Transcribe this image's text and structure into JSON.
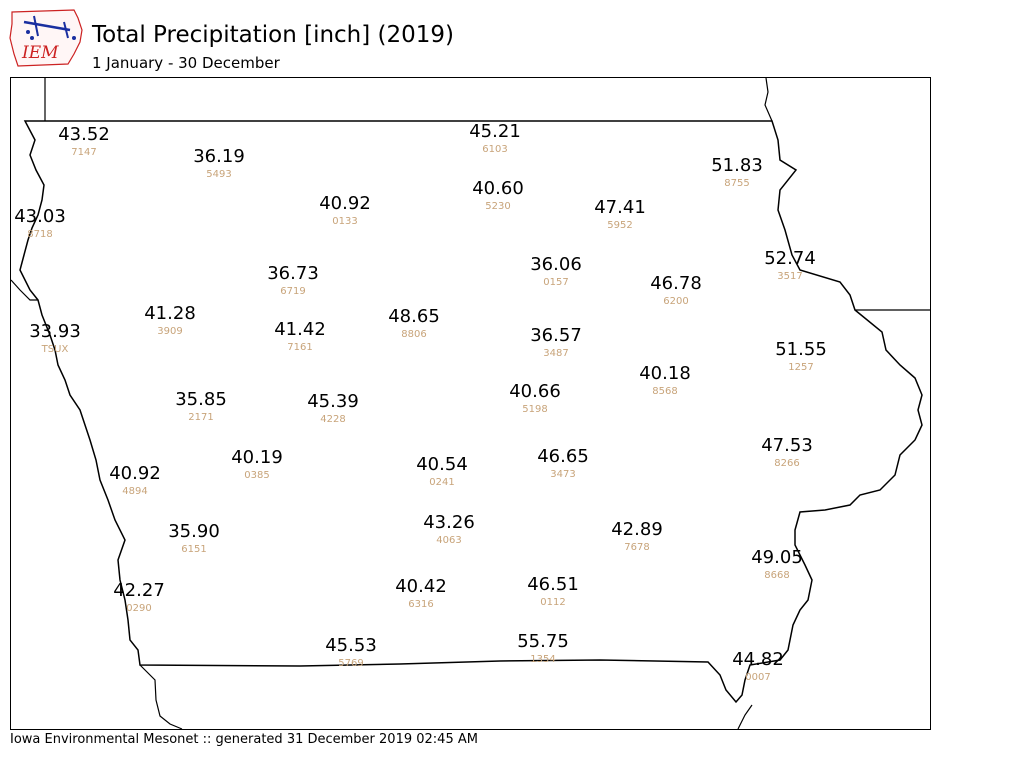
{
  "header": {
    "logo_text": "IEM",
    "title": "Total Precipitation [inch] (2019)",
    "subtitle": "1 January - 30 December"
  },
  "footer": {
    "text": "Iowa Environmental Mesonet :: generated 31 December 2019 02:45 AM"
  },
  "colors": {
    "value_text": "#000000",
    "station_text": "#c8a47a",
    "border": "#000000",
    "logo_red": "#cc2222",
    "logo_blue": "#1a2fa0"
  },
  "stations": [
    {
      "id": "7147",
      "value": "43.52"
    },
    {
      "id": "5493",
      "value": "36.19"
    },
    {
      "id": "6103",
      "value": "45.21"
    },
    {
      "id": "8755",
      "value": "51.83"
    },
    {
      "id": "0133",
      "value": "40.92"
    },
    {
      "id": "5230",
      "value": "40.60"
    },
    {
      "id": "5952",
      "value": "47.41"
    },
    {
      "id": "8718",
      "value": "43.03"
    },
    {
      "id": "6719",
      "value": "36.73"
    },
    {
      "id": "0157",
      "value": "36.06"
    },
    {
      "id": "3517",
      "value": "52.74"
    },
    {
      "id": "6200",
      "value": "46.78"
    },
    {
      "id": "3909",
      "value": "41.28"
    },
    {
      "id": "7161",
      "value": "41.42"
    },
    {
      "id": "8806",
      "value": "48.65"
    },
    {
      "id": "TSUX",
      "value": "33.93"
    },
    {
      "id": "3487",
      "value": "36.57"
    },
    {
      "id": "1257",
      "value": "51.55"
    },
    {
      "id": "8568",
      "value": "40.18"
    },
    {
      "id": "2171",
      "value": "35.85"
    },
    {
      "id": "4228",
      "value": "45.39"
    },
    {
      "id": "5198",
      "value": "40.66"
    },
    {
      "id": "8266",
      "value": "47.53"
    },
    {
      "id": "0385",
      "value": "40.19"
    },
    {
      "id": "4894",
      "value": "40.92"
    },
    {
      "id": "0241",
      "value": "40.54"
    },
    {
      "id": "3473",
      "value": "46.65"
    },
    {
      "id": "6151",
      "value": "35.90"
    },
    {
      "id": "4063",
      "value": "43.26"
    },
    {
      "id": "7678",
      "value": "42.89"
    },
    {
      "id": "8668",
      "value": "49.05"
    },
    {
      "id": "0290",
      "value": "42.27"
    },
    {
      "id": "6316",
      "value": "40.42"
    },
    {
      "id": "0112",
      "value": "46.51"
    },
    {
      "id": "5769",
      "value": "45.53"
    },
    {
      "id": "1354",
      "value": "55.75"
    },
    {
      "id": "0007",
      "value": "44.82"
    }
  ]
}
